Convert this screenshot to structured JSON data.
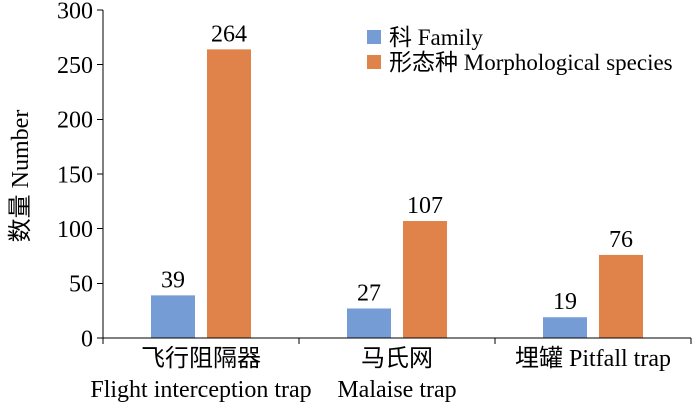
{
  "chart_data": {
    "type": "bar",
    "ylabel": "数量 Number",
    "categories": [
      [
        "飞行阻隔器",
        "Flight interception trap"
      ],
      [
        "马氏网",
        "Malaise trap"
      ],
      [
        "埋罐 Pitfall trap"
      ]
    ],
    "series": [
      {
        "name": "科 Family",
        "values": [
          39,
          27,
          19
        ],
        "color": "#769cd6"
      },
      {
        "name": "形态种 Morphological species",
        "values": [
          264,
          107,
          76
        ],
        "color": "#e0834b"
      }
    ],
    "ylim": [
      0,
      300
    ],
    "yticks": [
      0,
      50,
      100,
      150,
      200,
      250,
      300
    ],
    "data_labels": true,
    "grid": false,
    "legend": "top-right"
  }
}
